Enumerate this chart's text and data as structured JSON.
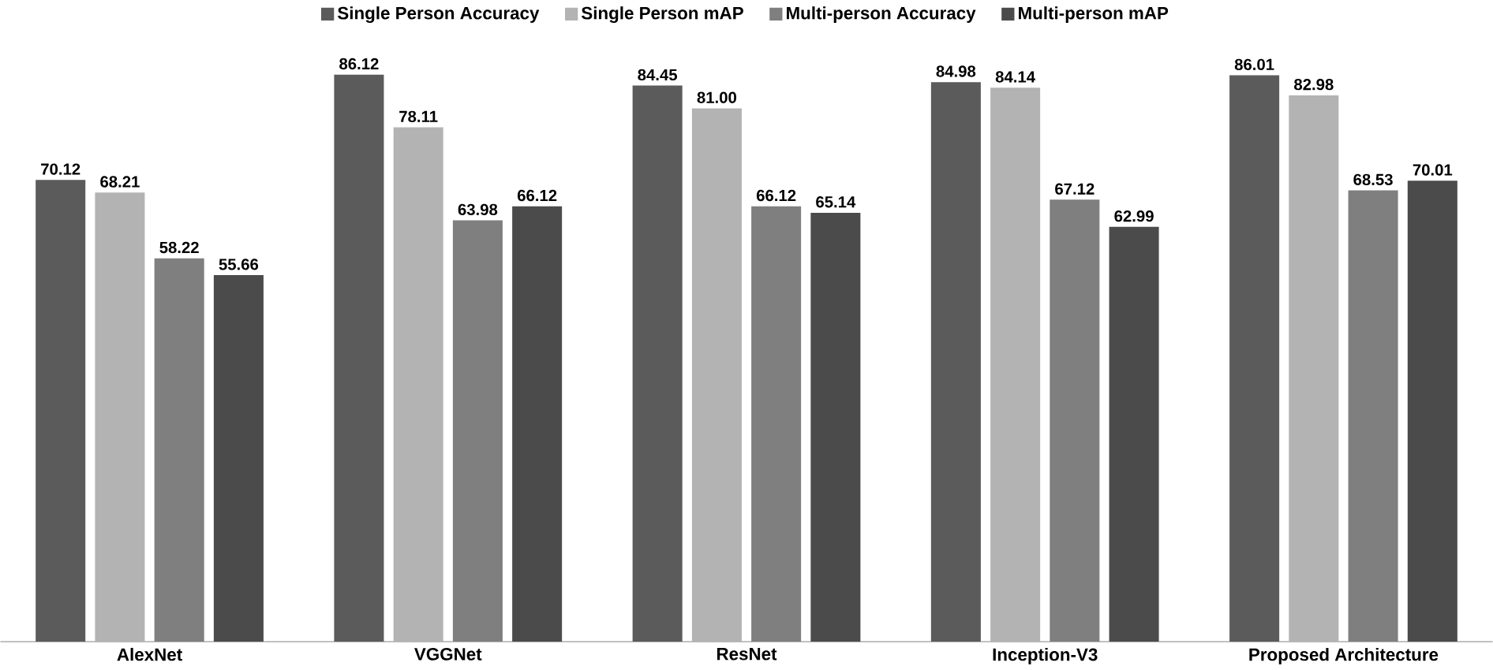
{
  "chart_data": {
    "type": "bar",
    "categories": [
      "AlexNet",
      "VGGNet",
      "ResNet",
      "Inception-V3",
      "Proposed Architecture"
    ],
    "legend": "top",
    "series": [
      {
        "name": "Single Person Accuracy",
        "color": "#5b5b5b",
        "values": [
          70.12,
          86.12,
          84.45,
          84.98,
          86.01
        ],
        "value_labels": [
          "70.12",
          "86.12",
          "84.45",
          "84.98",
          "86.01"
        ]
      },
      {
        "name": "Single Person mAP",
        "color": "#b3b3b3",
        "values": [
          68.21,
          78.11,
          81.0,
          84.14,
          82.98
        ],
        "value_labels": [
          "68.21",
          "78.11",
          "81.00",
          "84.14",
          "82.98"
        ]
      },
      {
        "name": "Multi-person Accuracy",
        "color": "#7f7f7f",
        "values": [
          58.22,
          63.98,
          66.12,
          67.12,
          68.53
        ],
        "value_labels": [
          "58.22",
          "63.98",
          "66.12",
          "67.12",
          "68.53"
        ]
      },
      {
        "name": "Multi-person mAP",
        "color": "#4b4b4b",
        "values": [
          55.66,
          66.12,
          65.14,
          62.99,
          70.01
        ],
        "value_labels": [
          "55.66",
          "66.12",
          "65.14",
          "62.99",
          "70.01"
        ]
      }
    ]
  }
}
